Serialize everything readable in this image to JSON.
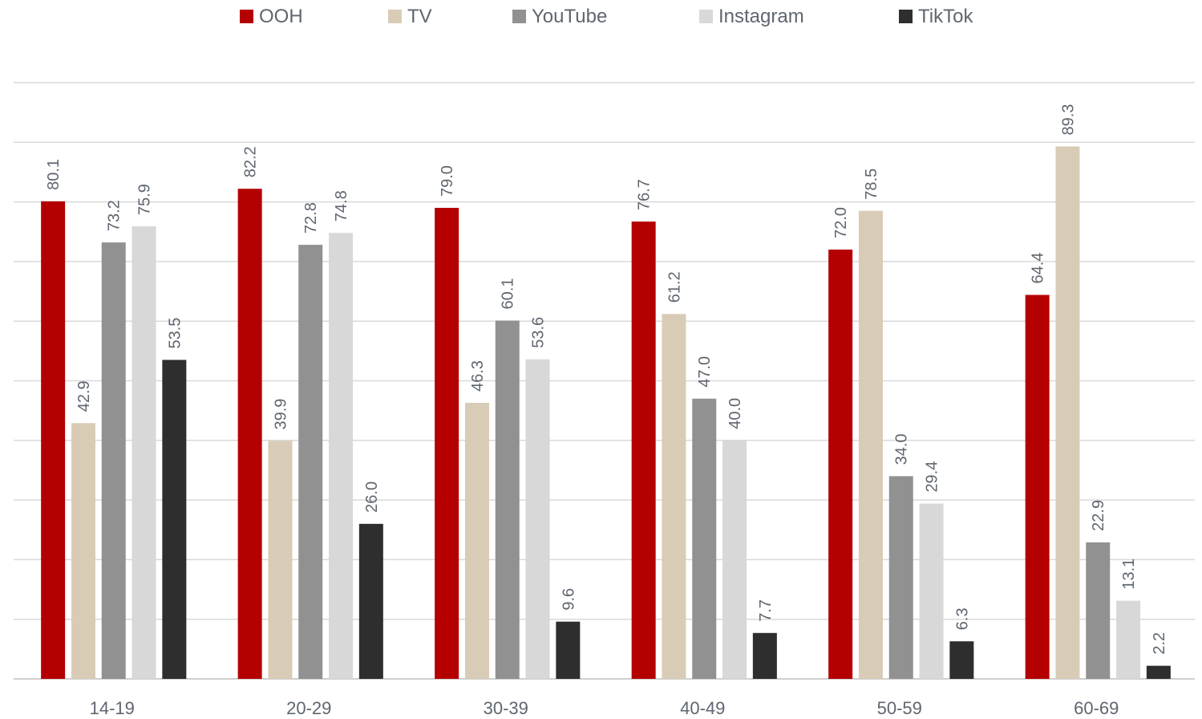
{
  "chart_data": {
    "type": "bar",
    "categories": [
      "14-19",
      "20-29",
      "30-39",
      "40-49",
      "50-59",
      "60-69"
    ],
    "series": [
      {
        "name": "OOH",
        "color": "#b40000",
        "values": [
          80.1,
          82.2,
          79.0,
          76.7,
          72.0,
          64.4
        ]
      },
      {
        "name": "TV",
        "color": "#d9ccb6",
        "values": [
          42.9,
          39.9,
          46.3,
          61.2,
          78.5,
          89.3
        ]
      },
      {
        "name": "YouTube",
        "color": "#919191",
        "values": [
          73.2,
          72.8,
          60.1,
          47.0,
          34.0,
          22.9
        ]
      },
      {
        "name": "Instagram",
        "color": "#d8d8d8",
        "values": [
          75.9,
          74.8,
          53.6,
          40.0,
          29.4,
          13.1
        ]
      },
      {
        "name": "TikTok",
        "color": "#2e2e2e",
        "values": [
          53.5,
          26.0,
          9.6,
          7.7,
          6.3,
          2.2
        ]
      }
    ],
    "value_labels": [
      [
        "80.1",
        "82.2",
        "79.0",
        "76.7",
        "72.0",
        "64.4"
      ],
      [
        "42.9",
        "39.9",
        "46.3",
        "61.2",
        "78.5",
        "89.3"
      ],
      [
        "73.2",
        "72.8",
        "60.1",
        "47.0",
        "34.0",
        "22.9"
      ],
      [
        "75.9",
        "74.8",
        "53.6",
        "40.0",
        "29.4",
        "13.1"
      ],
      [
        "53.5",
        "26.0",
        "9.6",
        "7.7",
        "6.3",
        "2.2"
      ]
    ],
    "ylim": [
      0,
      100
    ],
    "gridlines": true,
    "legend_position": "top-center",
    "title": "",
    "xlabel": "",
    "ylabel": ""
  }
}
